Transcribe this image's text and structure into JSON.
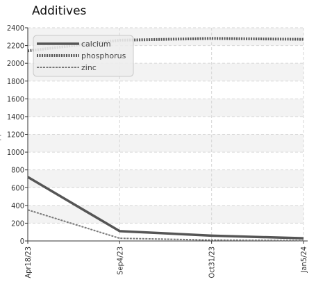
{
  "chart_data": {
    "type": "line",
    "title": "Additives",
    "xlabel": "",
    "ylabel": "ppm",
    "x": [
      "Apr18/23",
      "Sep4/23",
      "Oct31/23",
      "Jan5/24"
    ],
    "ylim": [
      0,
      2400
    ],
    "yticks": [
      0,
      200,
      400,
      600,
      800,
      1000,
      1200,
      1400,
      1600,
      1800,
      2000,
      2200,
      2400
    ],
    "grid": true,
    "legend_position": "top-left",
    "series": [
      {
        "name": "calcium",
        "values": [
          720,
          110,
          60,
          30
        ],
        "color": "#555555",
        "style": "solid"
      },
      {
        "name": "phosphorus",
        "values": [
          2140,
          2260,
          2280,
          2270
        ],
        "color": "#555555",
        "style": "dotted"
      },
      {
        "name": "zinc",
        "values": [
          350,
          30,
          10,
          5
        ],
        "color": "#777777",
        "style": "dashed"
      }
    ]
  }
}
